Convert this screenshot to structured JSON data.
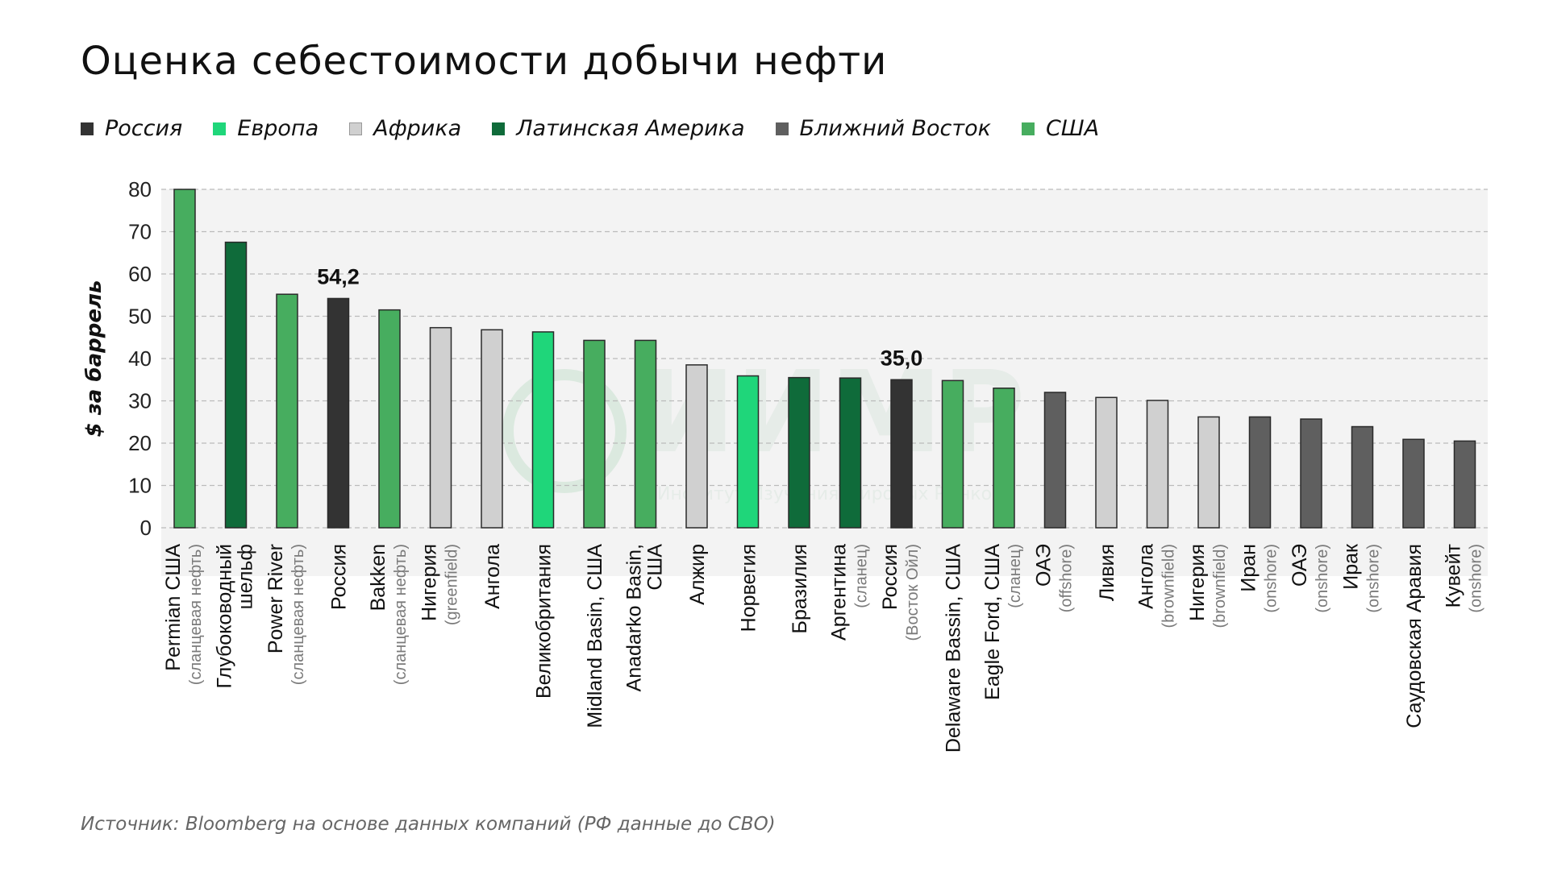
{
  "title": "Оценка себестоимости добычи нефти",
  "source": "Источник: Bloomberg на основе данных компаний (РФ данные до СВО)",
  "watermark": {
    "text": "ИИМР",
    "subtitle": "Институт Изучения Мировых Рынков"
  },
  "colors": {
    "Россия": "#333333",
    "Европа": "#1fd67a",
    "Африка": "#d0d0d0",
    "Латинская Америка": "#0f6b3a",
    "Ближний Восток": "#5f5f5f",
    "США": "#47ad5f",
    "grid": "#bbbbbb",
    "band": "#f3f3f3",
    "watermark": "#e6ece8"
  },
  "legend": [
    "Россия",
    "Европа",
    "Африка",
    "Латинская Америка",
    "Ближний Восток",
    "США"
  ],
  "chart_data": {
    "type": "bar",
    "title": "Оценка себестоимости добычи нефти",
    "ylabel": "$ за баррель",
    "xlabel": "",
    "ylim": [
      0,
      80
    ],
    "yticks": [
      0,
      10,
      20,
      30,
      40,
      50,
      60,
      70,
      80
    ],
    "grid": true,
    "legend_position": "top-left",
    "categories": [
      {
        "main": "Permian США",
        "sub": "(сланцевая нефть)",
        "region": "США",
        "value": 80
      },
      {
        "main": "Глубоководный",
        "main2": "шельф",
        "sub": "",
        "region": "Латинская Америка",
        "value": 67.5
      },
      {
        "main": "Power River",
        "sub": "(сланцевая нефть)",
        "region": "США",
        "value": 55.2
      },
      {
        "main": "Россия",
        "sub": "",
        "region": "Россия",
        "value": 54.2,
        "label": "54,2"
      },
      {
        "main": "Bakken",
        "sub": "(сланцевая нефть)",
        "region": "США",
        "value": 51.5
      },
      {
        "main": "Нигерия",
        "sub": "(greenfield)",
        "region": "Африка",
        "value": 47.3
      },
      {
        "main": "Ангола",
        "sub": "",
        "region": "Африка",
        "value": 46.8
      },
      {
        "main": "Великобритания",
        "sub": "",
        "region": "Европа",
        "value": 46.3
      },
      {
        "main": "Midland Basin, США",
        "sub": "",
        "region": "США",
        "value": 44.3
      },
      {
        "main": "Anadarko Basin,",
        "main2": "США",
        "sub": "",
        "region": "США",
        "value": 44.3
      },
      {
        "main": "Алжир",
        "sub": "",
        "region": "Африка",
        "value": 38.5
      },
      {
        "main": "Норвегия",
        "sub": "",
        "region": "Европа",
        "value": 35.9
      },
      {
        "main": "Бразилия",
        "sub": "",
        "region": "Латинская Америка",
        "value": 35.5
      },
      {
        "main": "Аргентина",
        "sub": "(сланец)",
        "region": "Латинская Америка",
        "value": 35.4
      },
      {
        "main": "Россия",
        "sub": "(Восток Ойл)",
        "region": "Россия",
        "value": 35.0,
        "label": "35,0"
      },
      {
        "main": "Delaware Bassin, США",
        "sub": "",
        "region": "США",
        "value": 34.8
      },
      {
        "main": "Eagle Ford, США",
        "sub": "(сланец)",
        "region": "США",
        "value": 33.0
      },
      {
        "main": "ОАЭ",
        "sub": "(offshore)",
        "region": "Ближний Восток",
        "value": 32.0
      },
      {
        "main": "Ливия",
        "sub": "",
        "region": "Африка",
        "value": 30.8
      },
      {
        "main": "Ангола",
        "sub": "(brownfield)",
        "region": "Африка",
        "value": 30.1
      },
      {
        "main": "Нигерия",
        "sub": "(brownfield)",
        "region": "Африка",
        "value": 26.2
      },
      {
        "main": "Иран",
        "sub": "(onshore)",
        "region": "Ближний Восток",
        "value": 26.2
      },
      {
        "main": "ОАЭ",
        "sub": "(onshore)",
        "region": "Ближний Восток",
        "value": 25.7
      },
      {
        "main": "Ирак",
        "sub": "(onshore)",
        "region": "Ближний Восток",
        "value": 23.9
      },
      {
        "main": "Саудовская Аравия",
        "sub": "",
        "region": "Ближний Восток",
        "value": 20.9
      },
      {
        "main": "Кувейт",
        "sub": "(onshore)",
        "region": "Ближний Восток",
        "value": 20.5
      }
    ]
  }
}
